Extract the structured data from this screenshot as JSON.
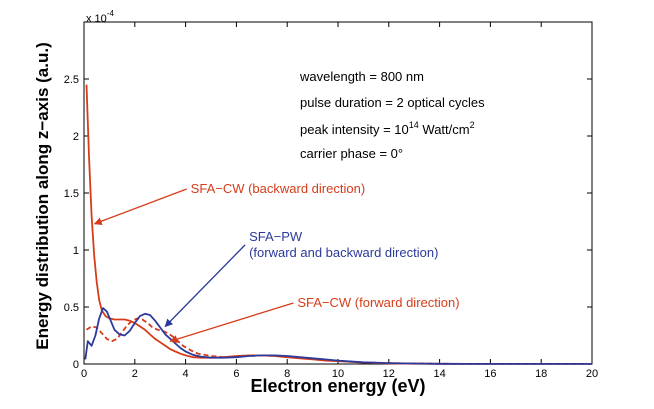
{
  "chart_data": {
    "type": "line",
    "title": "",
    "xlabel": "Electron energy (eV)",
    "ylabel": "Energy distribution along z−axis (a.u.)",
    "y_multiplier": "x 10",
    "y_multiplier_exp": "-4",
    "xlim": [
      0,
      20
    ],
    "ylim": [
      0,
      3
    ],
    "xticks": [
      0,
      2,
      4,
      6,
      8,
      10,
      12,
      14,
      16,
      18,
      20
    ],
    "yticks": [
      0,
      0.5,
      1,
      1.5,
      2,
      2.5
    ],
    "ytick_labels": [
      "0",
      "0.5",
      "1",
      "1.5",
      "2",
      "2.5"
    ],
    "grid": false,
    "info": {
      "wavelength": "wavelength = 800 nm",
      "pulse": "pulse duration = 2 optical cycles",
      "intensity_prefix": "peak intensity = 10",
      "intensity_exp": "14",
      "intensity_suffix": " Watt/cm",
      "intensity_sup2": "2",
      "carrier": "carrier phase = 0°"
    },
    "annotations": [
      {
        "lines": [
          "SFA−CW (backward direction)"
        ],
        "color": "#d63c1a",
        "x": 4.2,
        "y": 1.5,
        "target": [
          0.42,
          1.23
        ],
        "anchor": "start"
      },
      {
        "lines": [
          "SFA−PW",
          "(forward and backward direction)"
        ],
        "color": "#2b3a9b",
        "x": 6.5,
        "y": 1.08,
        "target": [
          3.2,
          0.33
        ],
        "anchor": "start"
      },
      {
        "lines": [
          "SFA−CW (forward direction)"
        ],
        "color": "#d63c1a",
        "x": 8.4,
        "y": 0.5,
        "target": [
          3.4,
          0.2
        ],
        "anchor": "start"
      }
    ],
    "series": [
      {
        "color": "#d63c1a",
        "dash": "solid",
        "width": 1.8,
        "x": [
          0.1,
          0.2,
          0.3,
          0.4,
          0.5,
          0.6,
          0.7,
          0.85,
          1.0,
          1.2,
          1.4,
          1.6,
          1.8,
          2.0,
          2.2,
          2.4,
          2.6,
          2.8,
          3.0,
          3.2,
          3.4,
          3.6,
          3.8,
          4.0,
          4.3,
          4.6,
          5.0,
          5.5,
          6.0,
          6.5,
          7.0,
          7.5,
          8.0,
          8.5,
          9.0,
          9.5,
          10,
          11,
          12,
          13,
          14,
          15,
          16,
          17,
          18,
          19,
          20
        ],
        "y": [
          2.45,
          1.8,
          1.3,
          0.95,
          0.72,
          0.56,
          0.47,
          0.42,
          0.4,
          0.39,
          0.39,
          0.39,
          0.38,
          0.36,
          0.33,
          0.3,
          0.26,
          0.22,
          0.19,
          0.16,
          0.13,
          0.11,
          0.09,
          0.075,
          0.06,
          0.055,
          0.055,
          0.06,
          0.07,
          0.075,
          0.075,
          0.07,
          0.06,
          0.05,
          0.04,
          0.03,
          0.025,
          0.012,
          0.006,
          0.003,
          0.002,
          0.001,
          0.001,
          0.001,
          0.001,
          0.001,
          0.001
        ]
      },
      {
        "color": "#d63c1a",
        "dash": "dashed",
        "width": 1.8,
        "x": [
          0.1,
          0.3,
          0.5,
          0.7,
          0.9,
          1.1,
          1.3,
          1.5,
          1.7,
          1.9,
          2.1,
          2.3,
          2.5,
          2.7,
          2.9,
          3.1,
          3.3,
          3.5,
          3.7,
          3.9,
          4.2,
          4.5,
          5.0,
          5.5,
          6.0,
          6.5,
          7.0,
          7.5,
          8.0,
          8.5,
          9.0,
          9.5,
          10,
          11,
          12,
          13,
          14,
          15,
          16,
          17,
          18,
          19,
          20
        ],
        "y": [
          0.3,
          0.33,
          0.32,
          0.27,
          0.22,
          0.2,
          0.22,
          0.28,
          0.34,
          0.38,
          0.4,
          0.39,
          0.36,
          0.32,
          0.3,
          0.29,
          0.27,
          0.24,
          0.2,
          0.16,
          0.12,
          0.09,
          0.07,
          0.06,
          0.065,
          0.07,
          0.075,
          0.07,
          0.065,
          0.055,
          0.045,
          0.035,
          0.028,
          0.014,
          0.007,
          0.004,
          0.002,
          0.001,
          0.001,
          0.001,
          0.001,
          0.001,
          0.001
        ]
      },
      {
        "color": "#2b3a9b",
        "dash": "solid",
        "width": 1.8,
        "x": [
          0.05,
          0.15,
          0.3,
          0.45,
          0.6,
          0.75,
          0.9,
          1.05,
          1.2,
          1.4,
          1.6,
          1.8,
          2.0,
          2.2,
          2.4,
          2.6,
          2.8,
          3.0,
          3.2,
          3.4,
          3.6,
          3.8,
          4.0,
          4.3,
          4.6,
          5.0,
          5.5,
          6.0,
          6.5,
          7.0,
          7.5,
          8.0,
          8.5,
          9.0,
          9.5,
          10,
          11,
          12,
          13,
          14,
          15,
          16,
          17,
          18,
          19,
          20
        ],
        "y": [
          0.04,
          0.2,
          0.16,
          0.25,
          0.4,
          0.49,
          0.46,
          0.38,
          0.3,
          0.26,
          0.25,
          0.29,
          0.36,
          0.42,
          0.44,
          0.43,
          0.38,
          0.32,
          0.26,
          0.22,
          0.18,
          0.14,
          0.11,
          0.08,
          0.065,
          0.055,
          0.055,
          0.06,
          0.07,
          0.075,
          0.075,
          0.07,
          0.06,
          0.05,
          0.04,
          0.03,
          0.015,
          0.008,
          0.004,
          0.002,
          0.001,
          0.001,
          0.001,
          0.001,
          0.001,
          0.001
        ]
      }
    ]
  }
}
